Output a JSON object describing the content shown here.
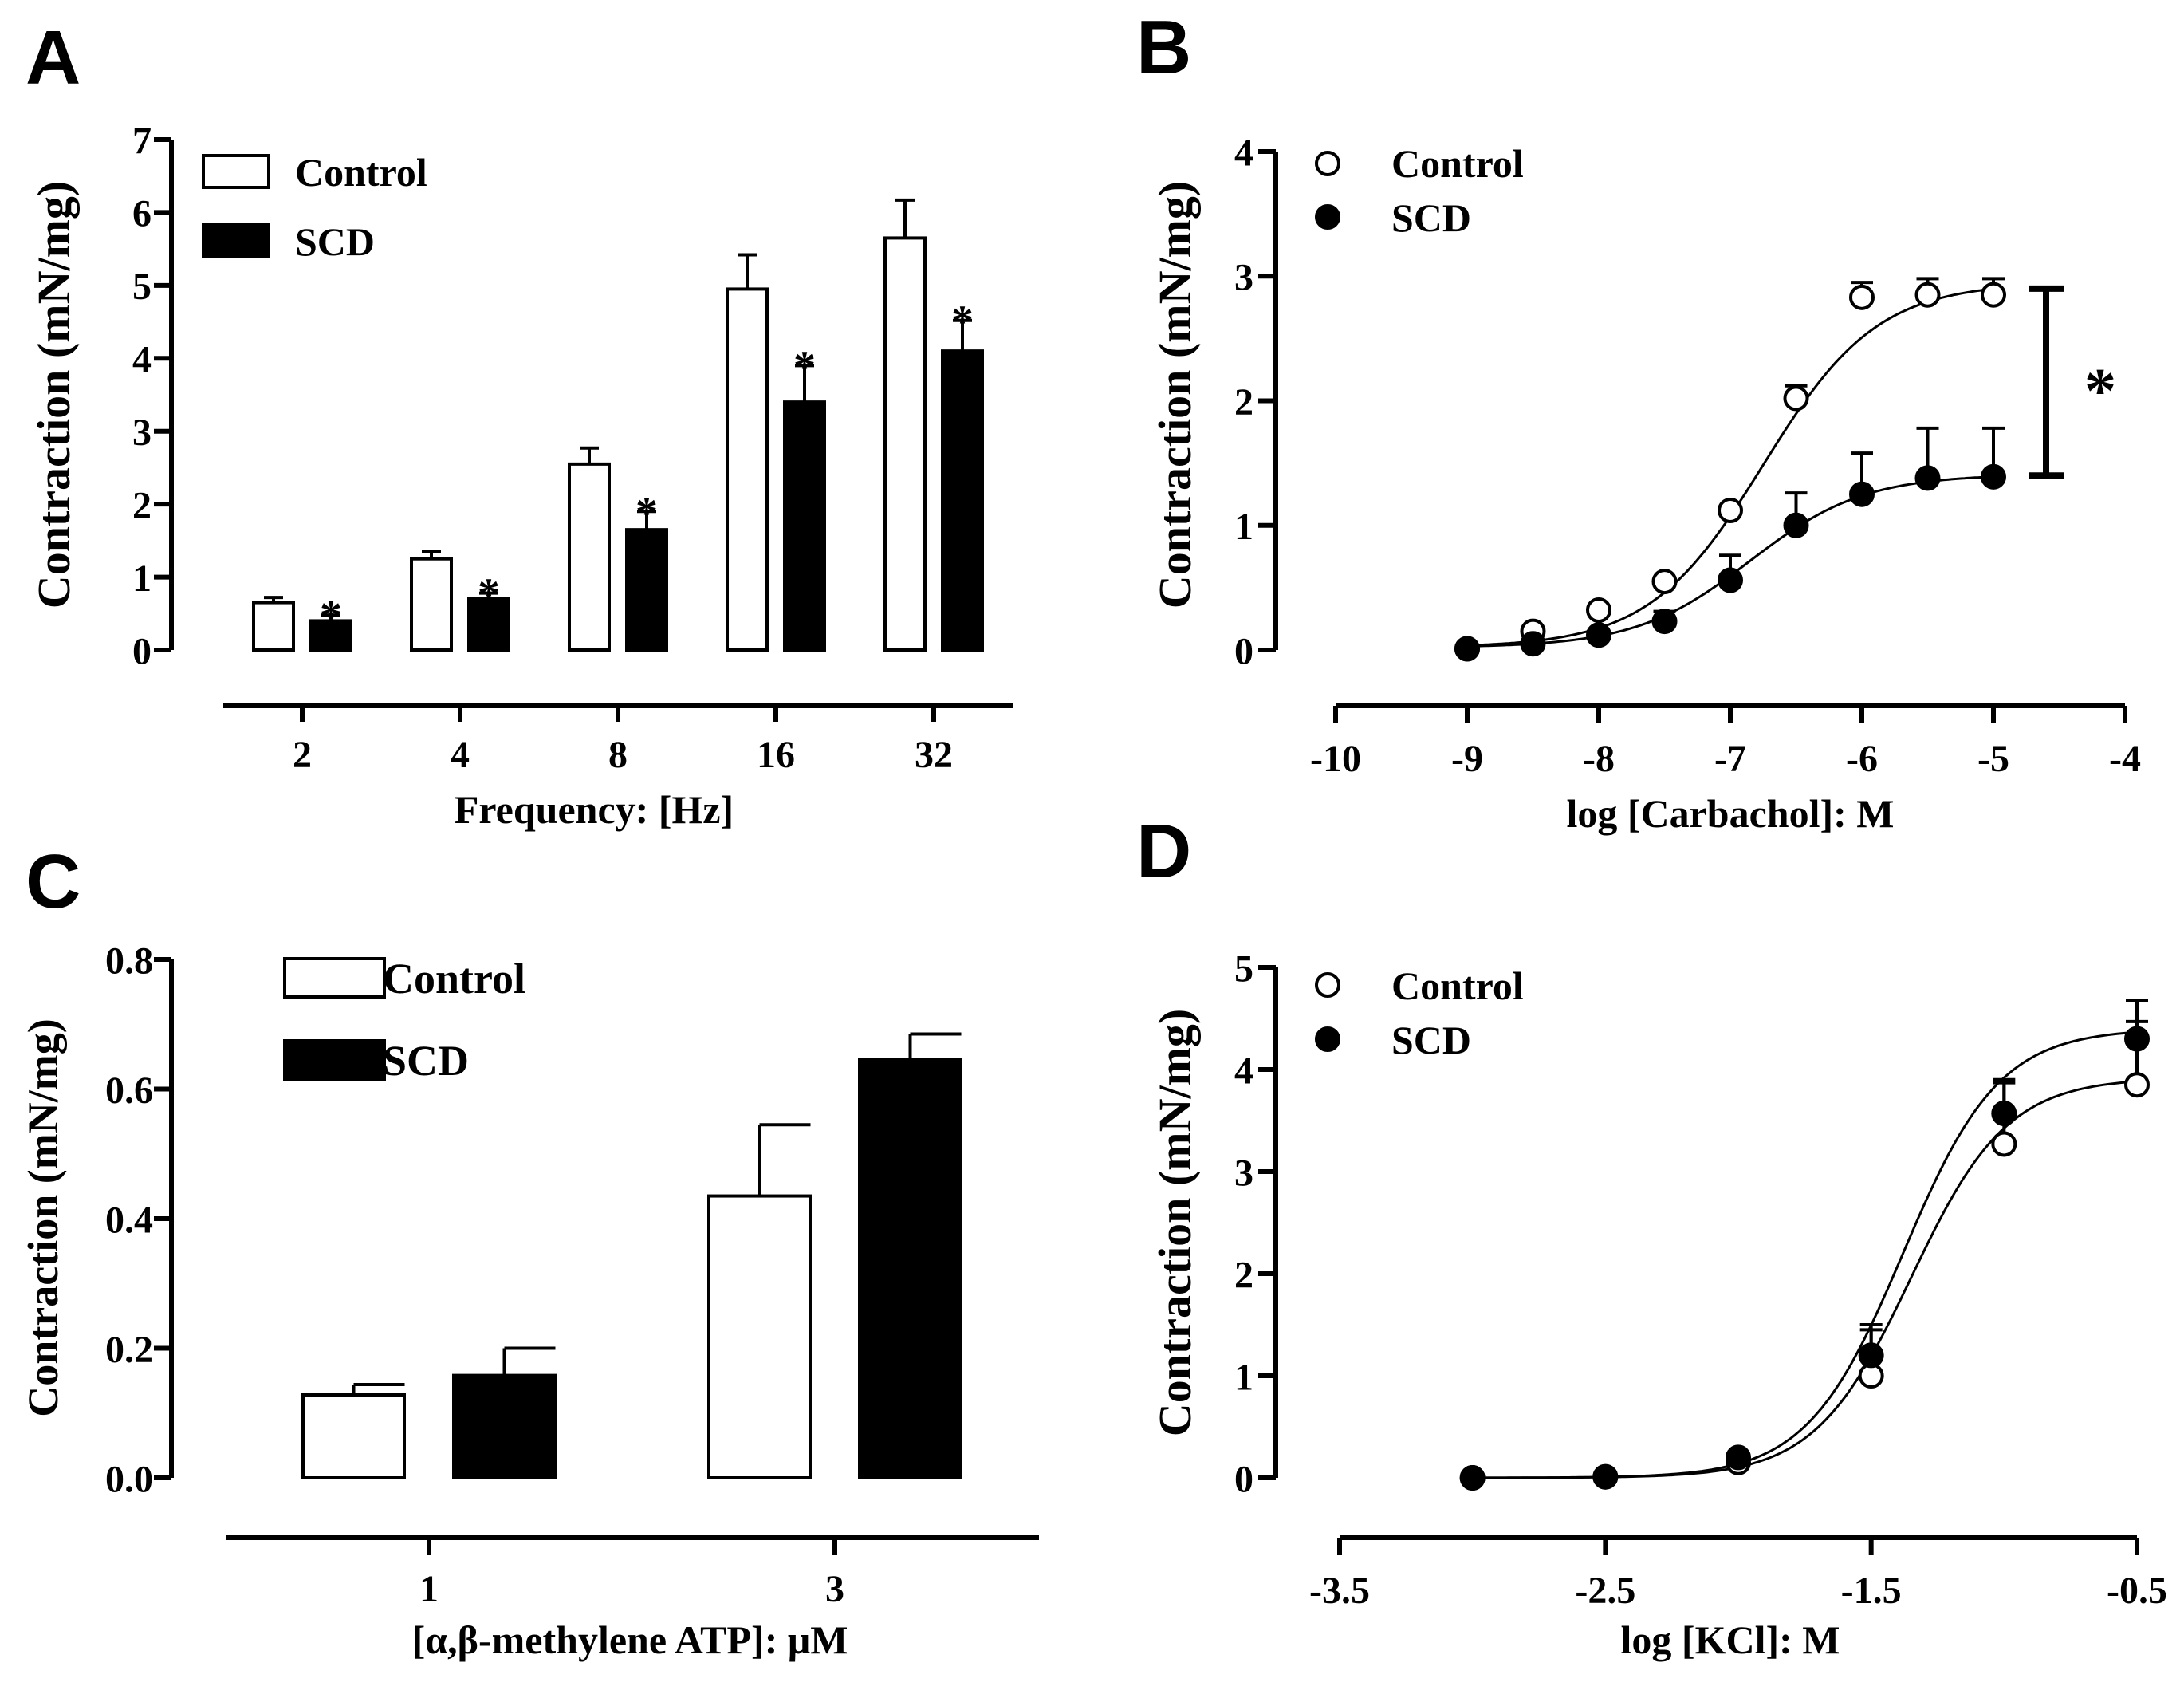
{
  "figure": {
    "panel_labels": [
      "A",
      "B",
      "C",
      "D"
    ],
    "colors": {
      "control_fill": "#ffffff",
      "scd_fill": "#000000",
      "axis": "#000000"
    }
  },
  "chart_data": [
    {
      "panel": "A",
      "type": "bar",
      "title": "",
      "xlabel": "Frequency: [Hz]",
      "ylabel": "Contraction (mN/mg)",
      "categories": [
        "2",
        "4",
        "8",
        "16",
        "32"
      ],
      "ylim": [
        0,
        7
      ],
      "yticks": [
        0,
        1,
        2,
        3,
        4,
        5,
        6,
        7
      ],
      "ytick_labels": [
        "0",
        "1",
        "2",
        "3",
        "4",
        "5",
        "6",
        "7"
      ],
      "legend_position": "top-left",
      "series": [
        {
          "name": "Control",
          "fill": "#ffffff",
          "values": [
            0.65,
            1.25,
            2.55,
            4.95,
            5.65
          ],
          "errors": [
            0.07,
            0.1,
            0.22,
            0.47,
            0.52
          ]
        },
        {
          "name": "SCD",
          "fill": "#000000",
          "values": [
            0.4,
            0.7,
            1.65,
            3.4,
            4.1
          ],
          "errors": [
            0.08,
            0.08,
            0.25,
            0.5,
            0.42
          ]
        }
      ],
      "annotations": [
        {
          "text": "*",
          "category": "2",
          "series": "SCD"
        },
        {
          "text": "*",
          "category": "4",
          "series": "SCD"
        },
        {
          "text": "*",
          "category": "8",
          "series": "SCD"
        },
        {
          "text": "*",
          "category": "16",
          "series": "SCD"
        },
        {
          "text": "*",
          "category": "32",
          "series": "SCD"
        }
      ]
    },
    {
      "panel": "B",
      "type": "scatter",
      "title": "",
      "xlabel": "log [Carbachol]: M",
      "ylabel": "Contraction (mN/mg)",
      "xlim": [
        -10,
        -4
      ],
      "ylim": [
        0,
        4
      ],
      "xticks": [
        -10,
        -9,
        -8,
        -7,
        -6,
        -5,
        -4
      ],
      "xtick_labels": [
        "-10",
        "-9",
        "-8",
        "-7",
        "-6",
        "-5",
        "-4"
      ],
      "yticks": [
        0,
        1,
        2,
        3,
        4
      ],
      "ytick_labels": [
        "0",
        "1",
        "2",
        "3",
        "4"
      ],
      "legend_position": "top-left",
      "series": [
        {
          "name": "Control",
          "marker": "open-circle",
          "x": [
            -9,
            -8.5,
            -8,
            -7.5,
            -7,
            -6.5,
            -6,
            -5.5,
            -5
          ],
          "y": [
            0.01,
            0.15,
            0.32,
            0.55,
            1.12,
            2.02,
            2.83,
            2.85,
            2.85
          ],
          "errors": [
            0,
            0,
            0,
            0,
            0,
            0.1,
            0.12,
            0.13,
            0.13
          ],
          "fit": {
            "bottom": 0.02,
            "top": 2.95,
            "logEC50": -6.75,
            "hill": 1.0
          }
        },
        {
          "name": "SCD",
          "marker": "filled-circle",
          "x": [
            -9,
            -8.5,
            -8,
            -7.5,
            -7,
            -6.5,
            -6,
            -5.5,
            -5
          ],
          "y": [
            0.01,
            0.05,
            0.12,
            0.23,
            0.56,
            1.0,
            1.25,
            1.38,
            1.39
          ],
          "errors": [
            0,
            0,
            0,
            0.08,
            0.2,
            0.26,
            0.33,
            0.4,
            0.39
          ],
          "fit": {
            "bottom": 0.02,
            "top": 1.41,
            "logEC50": -6.85,
            "hill": 1.0
          }
        }
      ],
      "significance": {
        "text": "*",
        "x": -4.6,
        "y_low": 1.4,
        "y_high": 2.9
      }
    },
    {
      "panel": "C",
      "type": "bar",
      "title": "",
      "xlabel": "[α,β-methylene ATP]: μM",
      "ylabel": "Contraction (mN/mg)",
      "categories": [
        "1",
        "3"
      ],
      "ylim": [
        0,
        0.8
      ],
      "yticks": [
        0,
        0.2,
        0.4,
        0.6,
        0.8
      ],
      "ytick_labels": [
        "0.0",
        "0.2",
        "0.4",
        "0.6",
        "0.8"
      ],
      "legend_position": "top-left",
      "series": [
        {
          "name": "Control",
          "fill": "#ffffff",
          "values": [
            0.128,
            0.435
          ],
          "errors": [
            0.016,
            0.11
          ]
        },
        {
          "name": "SCD",
          "fill": "#000000",
          "values": [
            0.158,
            0.645
          ],
          "errors": [
            0.042,
            0.04
          ]
        }
      ]
    },
    {
      "panel": "D",
      "type": "scatter",
      "title": "",
      "xlabel": "log [KCl]: M",
      "ylabel": "Contraction (mN/mg)",
      "xlim": [
        -3.5,
        -0.5
      ],
      "ylim": [
        0,
        5
      ],
      "xticks": [
        -3.5,
        -2.5,
        -1.5,
        -0.5
      ],
      "xtick_labels": [
        "-3.5",
        "-2.5",
        "-1.5",
        "-0.5"
      ],
      "yticks": [
        0,
        1,
        2,
        3,
        4,
        5
      ],
      "ytick_labels": [
        "0",
        "1",
        "2",
        "3",
        "4",
        "5"
      ],
      "legend_position": "top-left",
      "series": [
        {
          "name": "Control",
          "marker": "open-circle",
          "x": [
            -3,
            -2.5,
            -2,
            -1.5,
            -1,
            -0.5
          ],
          "y": [
            0.0,
            0.01,
            0.15,
            1.0,
            3.27,
            3.85
          ],
          "errors": [
            0,
            0,
            0,
            0.45,
            0.6,
            0.62
          ],
          "fit": {
            "bottom": 0.0,
            "top": 3.92,
            "logEC50": -1.35,
            "hill": 2.4
          }
        },
        {
          "name": "SCD",
          "marker": "filled-circle",
          "x": [
            -3,
            -2.5,
            -2,
            -1.5,
            -1,
            -0.5
          ],
          "y": [
            0.0,
            0.01,
            0.2,
            1.2,
            3.57,
            4.3
          ],
          "errors": [
            0,
            0,
            0,
            0.3,
            0.33,
            0.38
          ],
          "fit": {
            "bottom": 0.0,
            "top": 4.4,
            "logEC50": -1.38,
            "hill": 2.4
          }
        }
      ]
    }
  ]
}
